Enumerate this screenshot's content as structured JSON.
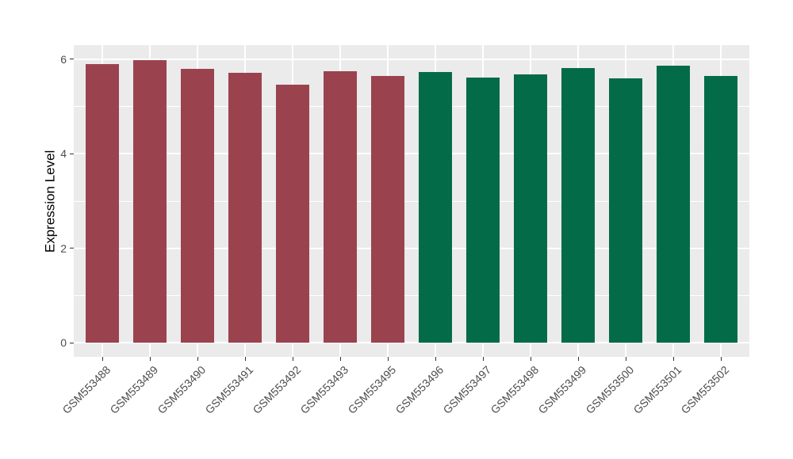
{
  "chart_data": {
    "type": "bar",
    "title": "",
    "xlabel": "",
    "ylabel": "Expression Level",
    "categories": [
      "GSM553488",
      "GSM553489",
      "GSM553490",
      "GSM553491",
      "GSM553492",
      "GSM553493",
      "GSM553495",
      "GSM553496",
      "GSM553497",
      "GSM553498",
      "GSM553499",
      "GSM553500",
      "GSM553501",
      "GSM553502"
    ],
    "values": [
      5.9,
      5.98,
      5.8,
      5.71,
      5.47,
      5.75,
      5.65,
      5.73,
      5.62,
      5.68,
      5.81,
      5.6,
      5.86,
      5.65
    ],
    "bar_colors": [
      "#9A434F",
      "#9A434F",
      "#9A434F",
      "#9A434F",
      "#9A434F",
      "#9A434F",
      "#9A434F",
      "#046B48",
      "#046B48",
      "#046B48",
      "#046B48",
      "#046B48",
      "#046B48",
      "#046B48"
    ],
    "group_colors": {
      "left_group": "#9A434F",
      "right_group": "#046B48"
    },
    "ylim": [
      0,
      6
    ],
    "yticks": [
      0,
      2,
      4,
      6
    ],
    "ytick_labels": [
      "0",
      "2",
      "4",
      "6"
    ],
    "minor_yticks": [
      1,
      3,
      5
    ],
    "grid": "on",
    "legend": "none",
    "panel_background": "#EBEBEB",
    "grid_color": "#FFFFFF",
    "tick_mark_color": "#333333",
    "tick_label_color": "#4D4D4D",
    "axis_title_color": "#000000"
  }
}
